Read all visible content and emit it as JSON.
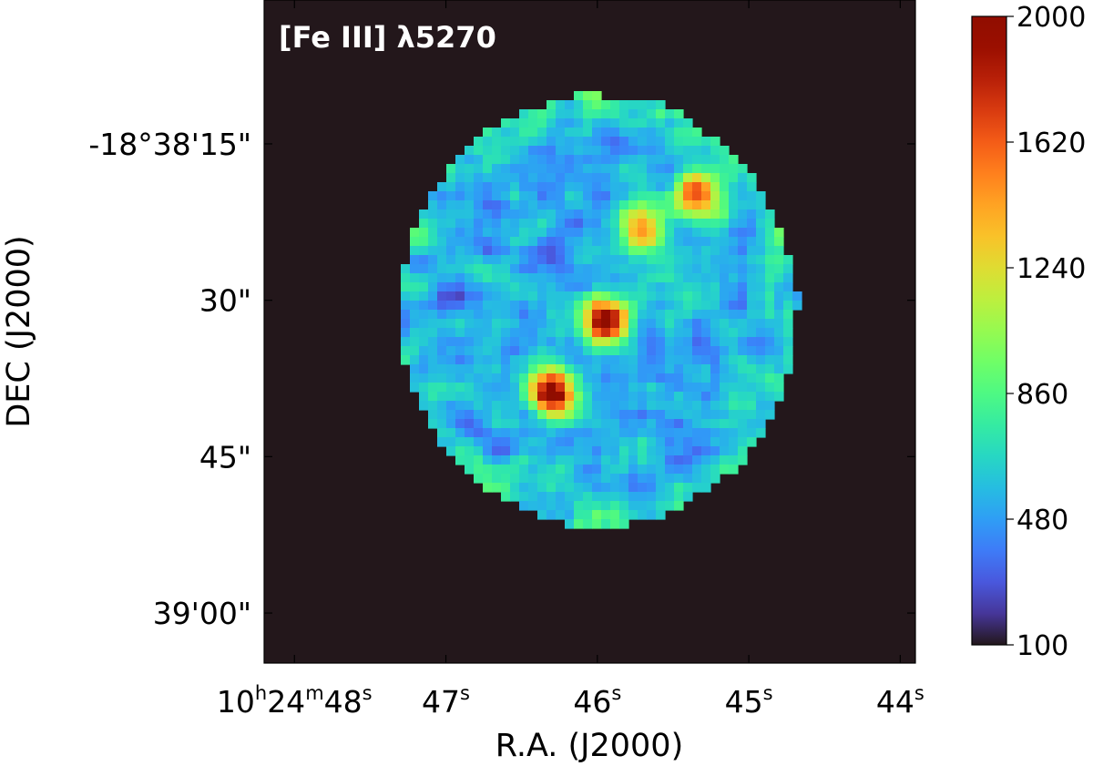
{
  "chart_data": {
    "type": "heatmap",
    "title": "[Fe III] λ5270",
    "xlabel": "R.A. (J2000)",
    "ylabel": "DEC (J2000)",
    "x_ticks": [
      {
        "h": "10",
        "m": "24",
        "s": "48",
        "sec": 48
      },
      {
        "s": "47",
        "sec": 47
      },
      {
        "s": "46",
        "sec": 46
      },
      {
        "s": "45",
        "sec": 45
      },
      {
        "s": "44",
        "sec": 44
      }
    ],
    "y_ticks": [
      {
        "label": "-18°38'15\"",
        "arcsec": 15
      },
      {
        "label": "30\"",
        "arcsec": 30
      },
      {
        "label": "45\"",
        "arcsec": 45
      },
      {
        "label": "39'00\"",
        "arcsec": 60
      }
    ],
    "x_range_sec": [
      48.2,
      43.9
    ],
    "y_range_arcsec": [
      1.2,
      64.8
    ],
    "colormap": "turbo",
    "colorbar": {
      "range": [
        100,
        2000
      ],
      "ticks": [
        2000,
        1620,
        1240,
        860,
        480,
        100
      ]
    },
    "background_value": 100,
    "nebula": {
      "center_ra_sec": 46.0,
      "center_dec_arcsec": 31.0,
      "typical_value": 520,
      "bright_knots": [
        {
          "ra_sec": 46.3,
          "dec_arcsec": 39.0,
          "value": 2000
        },
        {
          "ra_sec": 45.95,
          "dec_arcsec": 32.0,
          "value": 2000
        },
        {
          "ra_sec": 45.35,
          "dec_arcsec": 20.0,
          "value": 1700
        },
        {
          "ra_sec": 45.7,
          "dec_arcsec": 23.0,
          "value": 1450
        }
      ]
    }
  }
}
